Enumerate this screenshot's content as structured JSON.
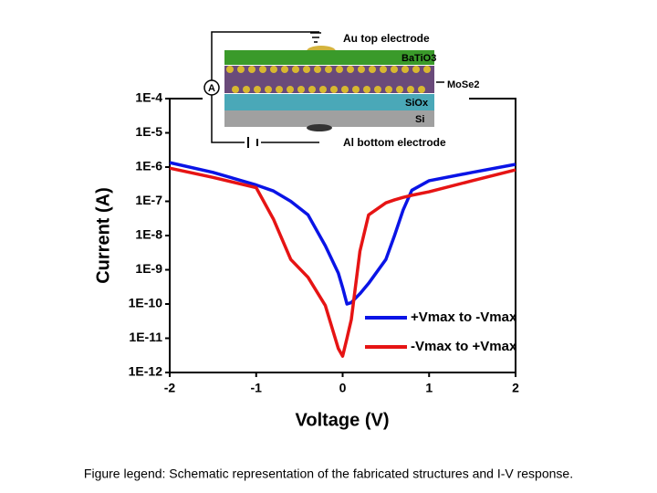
{
  "chart_data": {
    "type": "line",
    "xlabel": "Voltage (V)",
    "ylabel": "Current (A)",
    "xlim": [
      -2,
      2
    ],
    "xticks": [
      -2,
      -1,
      0,
      1,
      2
    ],
    "ylim": [
      1e-12,
      0.0001
    ],
    "log_y": true,
    "grid": false,
    "yticks": [
      {
        "value": 1e-12,
        "label": "1E-12"
      },
      {
        "value": 1e-11,
        "label": "1E-11"
      },
      {
        "value": 1e-10,
        "label": "1E-10"
      },
      {
        "value": 1e-09,
        "label": "1E-9"
      },
      {
        "value": 1e-08,
        "label": "1E-8"
      },
      {
        "value": 1e-07,
        "label": "1E-7"
      },
      {
        "value": 1e-06,
        "label": "1E-6"
      },
      {
        "value": 1e-05,
        "label": "1E-5"
      },
      {
        "value": 0.0001,
        "label": "1E-4"
      }
    ],
    "legend": "lower right",
    "x": [
      -2,
      -1.5,
      -1,
      -0.8,
      -0.6,
      -0.4,
      -0.2,
      -0.05,
      0,
      0.05,
      0.1,
      0.2,
      0.3,
      0.5,
      0.6,
      0.7,
      0.8,
      1,
      1.5,
      2
    ],
    "series": [
      {
        "name": "+Vmax to -Vmax",
        "color": "#0a14e6",
        "values": [
          1.35e-06,
          7e-07,
          3e-07,
          2e-07,
          1e-07,
          4e-08,
          5e-09,
          8e-10,
          3e-10,
          1e-10,
          1.1e-10,
          2e-10,
          4e-10,
          2e-09,
          1e-08,
          5.6e-08,
          2.1e-07,
          4e-07,
          7e-07,
          1.2e-06
        ]
      },
      {
        "name": "-Vmax to +Vmax",
        "color": "#e61414",
        "values": [
          9.3e-07,
          5e-07,
          2.5e-07,
          3e-08,
          2e-09,
          6e-10,
          9e-11,
          5e-12,
          3e-12,
          1e-11,
          3.5e-11,
          3.5e-09,
          4e-08,
          9e-08,
          1.1e-07,
          1.3e-07,
          1.5e-07,
          1.9e-07,
          4e-07,
          8.3e-07
        ]
      }
    ]
  },
  "inset": {
    "top_label": "Au top electrode",
    "layer_1": "BaTiO3",
    "layer_2": "MoSe2",
    "layer_3": "SiOx",
    "layer_4": "Si",
    "bottom_label": "Al bottom electrode",
    "meter": "A"
  },
  "caption": "Figure legend: Schematic representation of the fabricated structures and I-V response."
}
